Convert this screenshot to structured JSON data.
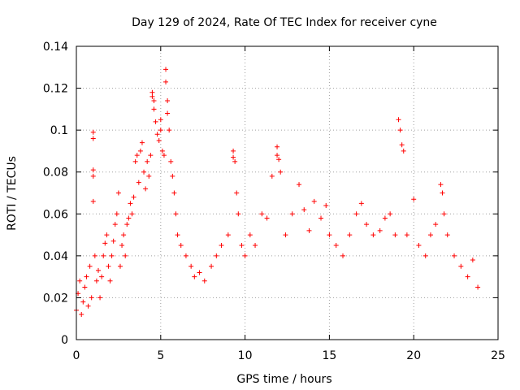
{
  "chart_data": {
    "type": "scatter",
    "title": "Day 129 of 2024, Rate Of TEC Index for receiver cyne",
    "xlabel": "GPS time / hours",
    "ylabel": "ROTI / TECUs",
    "xlim": [
      0,
      25
    ],
    "ylim": [
      0,
      0.14
    ],
    "xticks": [
      0,
      5,
      10,
      15,
      20,
      25
    ],
    "yticks": [
      0,
      0.02,
      0.04,
      0.06,
      0.08,
      0.1,
      0.12,
      0.14
    ],
    "xtick_labels": [
      "0",
      "5",
      "10",
      "15",
      "20",
      "25"
    ],
    "ytick_labels": [
      "0",
      "0.02",
      "0.04",
      "0.06",
      "0.08",
      "0.1",
      "0.12",
      "0.14"
    ],
    "grid": true,
    "marker": "plus",
    "color": "#ff0000",
    "series": [
      {
        "name": "ROTI",
        "points": [
          [
            0.0,
            0.014
          ],
          [
            0.1,
            0.022
          ],
          [
            0.2,
            0.028
          ],
          [
            0.3,
            0.012
          ],
          [
            0.4,
            0.018
          ],
          [
            0.5,
            0.025
          ],
          [
            0.6,
            0.03
          ],
          [
            0.7,
            0.016
          ],
          [
            0.8,
            0.035
          ],
          [
            0.9,
            0.02
          ],
          [
            1.0,
            0.099
          ],
          [
            1.0,
            0.096
          ],
          [
            1.0,
            0.081
          ],
          [
            1.0,
            0.078
          ],
          [
            1.0,
            0.066
          ],
          [
            1.1,
            0.04
          ],
          [
            1.2,
            0.028
          ],
          [
            1.3,
            0.033
          ],
          [
            1.4,
            0.02
          ],
          [
            1.5,
            0.03
          ],
          [
            1.6,
            0.04
          ],
          [
            1.7,
            0.046
          ],
          [
            1.8,
            0.05
          ],
          [
            1.9,
            0.035
          ],
          [
            2.0,
            0.028
          ],
          [
            2.1,
            0.04
          ],
          [
            2.2,
            0.047
          ],
          [
            2.3,
            0.055
          ],
          [
            2.4,
            0.06
          ],
          [
            2.5,
            0.07
          ],
          [
            2.6,
            0.035
          ],
          [
            2.7,
            0.045
          ],
          [
            2.8,
            0.05
          ],
          [
            2.9,
            0.04
          ],
          [
            3.0,
            0.055
          ],
          [
            3.1,
            0.058
          ],
          [
            3.2,
            0.065
          ],
          [
            3.3,
            0.06
          ],
          [
            3.4,
            0.068
          ],
          [
            3.5,
            0.085
          ],
          [
            3.6,
            0.088
          ],
          [
            3.7,
            0.075
          ],
          [
            3.8,
            0.09
          ],
          [
            3.9,
            0.094
          ],
          [
            4.0,
            0.08
          ],
          [
            4.1,
            0.072
          ],
          [
            4.2,
            0.085
          ],
          [
            4.3,
            0.078
          ],
          [
            4.4,
            0.088
          ],
          [
            4.5,
            0.118
          ],
          [
            4.5,
            0.116
          ],
          [
            4.6,
            0.114
          ],
          [
            4.6,
            0.11
          ],
          [
            4.7,
            0.104
          ],
          [
            4.8,
            0.098
          ],
          [
            4.9,
            0.095
          ],
          [
            5.0,
            0.105
          ],
          [
            5.0,
            0.1
          ],
          [
            5.1,
            0.09
          ],
          [
            5.2,
            0.088
          ],
          [
            5.3,
            0.129
          ],
          [
            5.3,
            0.123
          ],
          [
            5.4,
            0.114
          ],
          [
            5.4,
            0.108
          ],
          [
            5.5,
            0.1
          ],
          [
            5.6,
            0.085
          ],
          [
            5.7,
            0.078
          ],
          [
            5.8,
            0.07
          ],
          [
            5.9,
            0.06
          ],
          [
            6.0,
            0.05
          ],
          [
            6.2,
            0.045
          ],
          [
            6.5,
            0.04
          ],
          [
            6.8,
            0.035
          ],
          [
            7.0,
            0.03
          ],
          [
            7.3,
            0.032
          ],
          [
            7.6,
            0.028
          ],
          [
            8.0,
            0.035
          ],
          [
            8.3,
            0.04
          ],
          [
            8.6,
            0.045
          ],
          [
            9.0,
            0.05
          ],
          [
            9.3,
            0.09
          ],
          [
            9.3,
            0.087
          ],
          [
            9.4,
            0.085
          ],
          [
            9.5,
            0.07
          ],
          [
            9.6,
            0.06
          ],
          [
            9.8,
            0.045
          ],
          [
            10.0,
            0.04
          ],
          [
            10.3,
            0.05
          ],
          [
            10.6,
            0.045
          ],
          [
            11.0,
            0.06
          ],
          [
            11.3,
            0.058
          ],
          [
            11.6,
            0.078
          ],
          [
            11.9,
            0.092
          ],
          [
            11.9,
            0.088
          ],
          [
            12.0,
            0.086
          ],
          [
            12.1,
            0.08
          ],
          [
            12.4,
            0.05
          ],
          [
            12.8,
            0.06
          ],
          [
            13.2,
            0.074
          ],
          [
            13.5,
            0.062
          ],
          [
            13.8,
            0.052
          ],
          [
            14.1,
            0.066
          ],
          [
            14.5,
            0.058
          ],
          [
            14.8,
            0.064
          ],
          [
            15.0,
            0.05
          ],
          [
            15.4,
            0.045
          ],
          [
            15.8,
            0.04
          ],
          [
            16.2,
            0.05
          ],
          [
            16.6,
            0.06
          ],
          [
            16.9,
            0.065
          ],
          [
            17.2,
            0.055
          ],
          [
            17.6,
            0.05
          ],
          [
            18.0,
            0.052
          ],
          [
            18.3,
            0.058
          ],
          [
            18.6,
            0.06
          ],
          [
            18.9,
            0.05
          ],
          [
            19.1,
            0.105
          ],
          [
            19.2,
            0.1
          ],
          [
            19.3,
            0.093
          ],
          [
            19.4,
            0.09
          ],
          [
            19.6,
            0.05
          ],
          [
            20.0,
            0.067
          ],
          [
            20.3,
            0.045
          ],
          [
            20.7,
            0.04
          ],
          [
            21.0,
            0.05
          ],
          [
            21.3,
            0.055
          ],
          [
            21.6,
            0.074
          ],
          [
            21.7,
            0.07
          ],
          [
            21.8,
            0.06
          ],
          [
            22.0,
            0.05
          ],
          [
            22.4,
            0.04
          ],
          [
            22.8,
            0.035
          ],
          [
            23.2,
            0.03
          ],
          [
            23.5,
            0.038
          ],
          [
            23.8,
            0.025
          ]
        ]
      }
    ]
  }
}
